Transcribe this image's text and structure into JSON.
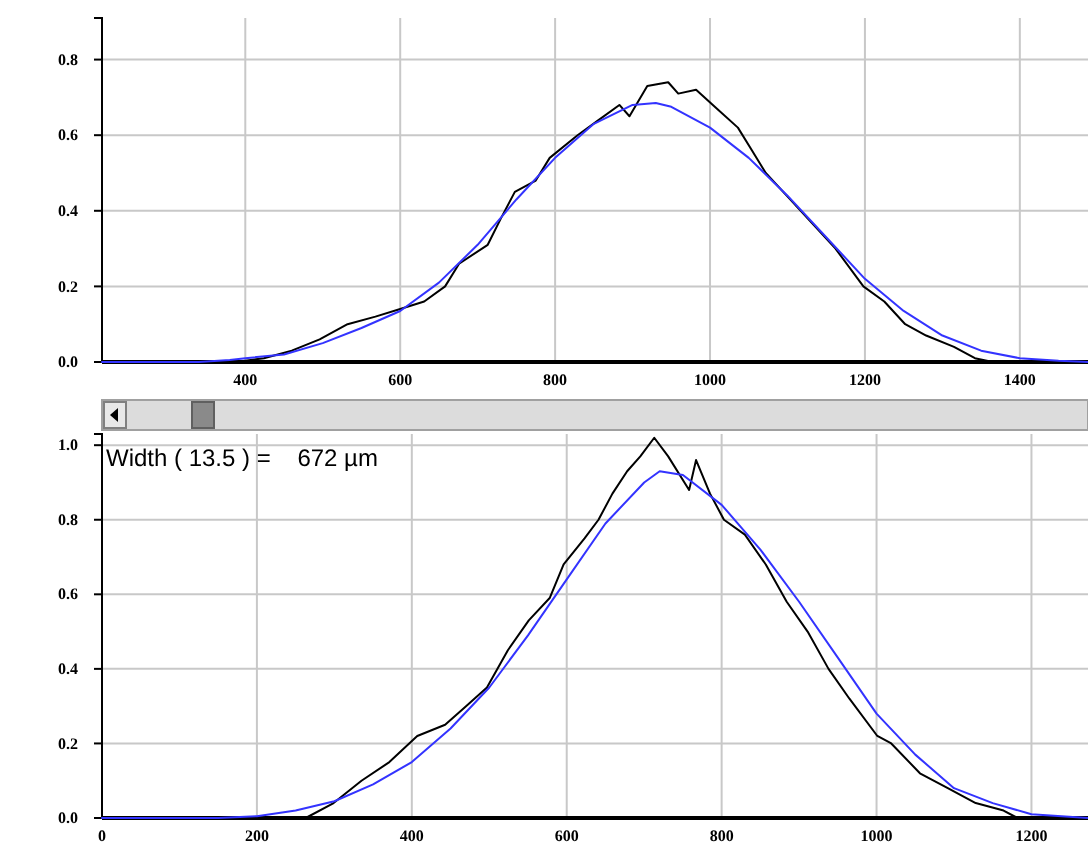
{
  "chart_data": [
    {
      "type": "line",
      "xlim": [
        215,
        1488
      ],
      "ylim": [
        0,
        0.91
      ],
      "xticks": [
        400,
        600,
        800,
        1000,
        1200,
        1400
      ],
      "yticks": [
        {
          "value": 0,
          "label": "0.0"
        },
        {
          "value": 0.2,
          "label": "0.2"
        },
        {
          "value": 0.4,
          "label": "0.4"
        },
        {
          "value": 0.6,
          "label": "0.6"
        },
        {
          "value": 0.8,
          "label": "0.8"
        }
      ],
      "grid": true,
      "series": [
        {
          "color": "#000000",
          "x": [
            388,
            424,
            460,
            496,
            532,
            568,
            600,
            631,
            658,
            676,
            713,
            730,
            748,
            775,
            793,
            829,
            856,
            883,
            896,
            919,
            946,
            959,
            982,
            1009,
            1036,
            1054,
            1072,
            1099,
            1126,
            1162,
            1198,
            1225,
            1252,
            1279,
            1315,
            1342,
            1365
          ],
          "values": [
            0,
            0.01,
            0.03,
            0.06,
            0.1,
            0.12,
            0.14,
            0.16,
            0.2,
            0.26,
            0.31,
            0.38,
            0.45,
            0.48,
            0.54,
            0.6,
            0.64,
            0.68,
            0.65,
            0.73,
            0.74,
            0.71,
            0.72,
            0.67,
            0.62,
            0.56,
            0.5,
            0.44,
            0.38,
            0.3,
            0.2,
            0.16,
            0.1,
            0.07,
            0.04,
            0.01,
            0
          ]
        },
        {
          "color": "#3333ff",
          "x": [
            215,
            340,
            380,
            400,
            450,
            500,
            550,
            600,
            650,
            700,
            750,
            800,
            850,
            900,
            930,
            950,
            1000,
            1050,
            1100,
            1150,
            1200,
            1250,
            1300,
            1350,
            1400,
            1450,
            1488
          ],
          "values": [
            0,
            0,
            0.005,
            0.01,
            0.02,
            0.05,
            0.09,
            0.135,
            0.21,
            0.31,
            0.43,
            0.54,
            0.63,
            0.68,
            0.685,
            0.675,
            0.62,
            0.54,
            0.44,
            0.33,
            0.22,
            0.135,
            0.07,
            0.03,
            0.01,
            0.003,
            0
          ]
        }
      ]
    },
    {
      "type": "line",
      "xlim": [
        0,
        1273
      ],
      "ylim": [
        0,
        1.03
      ],
      "xticks": [
        0,
        200,
        400,
        600,
        800,
        1000,
        1200
      ],
      "yticks": [
        {
          "value": 0,
          "label": "0.0"
        },
        {
          "value": 0.2,
          "label": "0.2"
        },
        {
          "value": 0.4,
          "label": "0.4"
        },
        {
          "value": 0.6,
          "label": "0.6"
        },
        {
          "value": 0.8,
          "label": "0.8"
        },
        {
          "value": 1,
          "label": "1.0"
        }
      ],
      "grid": true,
      "annotations": [
        "Width ( 13.5 ) =    672 µm"
      ],
      "series": [
        {
          "color": "#000000",
          "x": [
            263,
            299,
            335,
            371,
            407,
            443,
            470,
            497,
            524,
            551,
            578,
            596,
            623,
            641,
            659,
            678,
            695,
            713,
            731,
            758,
            767,
            785,
            803,
            830,
            857,
            884,
            911,
            938,
            965,
            1001,
            1019,
            1056,
            1092,
            1128,
            1164,
            1182
          ],
          "values": [
            0,
            0.04,
            0.1,
            0.15,
            0.22,
            0.25,
            0.3,
            0.35,
            0.45,
            0.53,
            0.59,
            0.68,
            0.75,
            0.8,
            0.87,
            0.93,
            0.97,
            1.02,
            0.97,
            0.88,
            0.96,
            0.87,
            0.8,
            0.76,
            0.68,
            0.58,
            0.5,
            0.4,
            0.32,
            0.22,
            0.2,
            0.12,
            0.08,
            0.04,
            0.02,
            0
          ]
        },
        {
          "color": "#3333ff",
          "x": [
            0,
            150,
            200,
            250,
            300,
            350,
            400,
            450,
            500,
            550,
            600,
            650,
            700,
            720,
            750,
            800,
            850,
            900,
            950,
            1000,
            1050,
            1100,
            1150,
            1200,
            1273
          ],
          "values": [
            0,
            0,
            0.005,
            0.02,
            0.045,
            0.09,
            0.15,
            0.24,
            0.35,
            0.49,
            0.64,
            0.79,
            0.9,
            0.93,
            0.92,
            0.84,
            0.72,
            0.58,
            0.43,
            0.28,
            0.17,
            0.08,
            0.04,
            0.01,
            0
          ]
        }
      ]
    }
  ]
}
